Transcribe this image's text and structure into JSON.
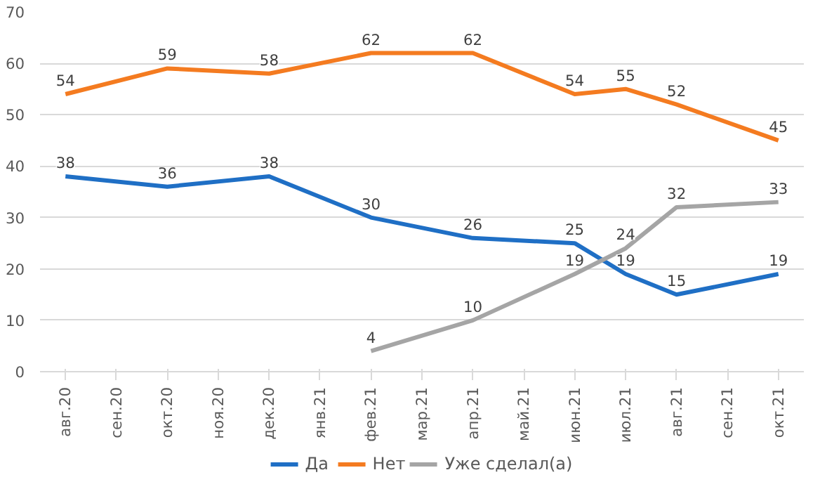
{
  "chart_data": {
    "type": "line",
    "categories": [
      "авг.20",
      "сен.20",
      "окт.20",
      "ноя.20",
      "дек.20",
      "янв.21",
      "фев.21",
      "мар.21",
      "апр.21",
      "май.21",
      "июн.21",
      "июл.21",
      "авг.21",
      "сен.21",
      "окт.21"
    ],
    "series": [
      {
        "name": "Да",
        "color": "#1f6fc5",
        "values": [
          38,
          null,
          36,
          null,
          38,
          null,
          30,
          null,
          26,
          null,
          25,
          19,
          15,
          null,
          19
        ]
      },
      {
        "name": "Нет",
        "color": "#f47b20",
        "values": [
          54,
          null,
          59,
          null,
          58,
          null,
          62,
          null,
          62,
          null,
          54,
          55,
          52,
          null,
          45
        ]
      },
      {
        "name": "Уже сделал(а)",
        "color": "#a5a5a5",
        "values": [
          null,
          null,
          null,
          null,
          null,
          null,
          4,
          null,
          10,
          null,
          19,
          24,
          32,
          null,
          33
        ]
      }
    ],
    "ylim": [
      0,
      70
    ],
    "yticks": [
      0,
      10,
      20,
      30,
      40,
      50,
      60,
      70
    ],
    "grid": "y",
    "legend": "bottom",
    "data_labels": true,
    "marker": "none",
    "line_style": "solid"
  }
}
